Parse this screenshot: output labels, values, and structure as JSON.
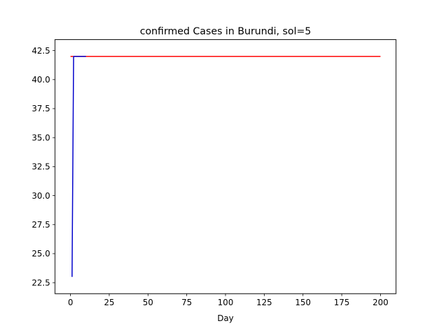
{
  "chart_data": {
    "type": "line",
    "title": "confirmed Cases in Burundi, sol=5",
    "xlabel": "Day",
    "ylabel": "",
    "xlim": [
      -10,
      210
    ],
    "ylim": [
      21.55,
      43.45
    ],
    "xticks": [
      0,
      25,
      50,
      75,
      100,
      125,
      150,
      175,
      200
    ],
    "xtick_labels": [
      "0",
      "25",
      "50",
      "75",
      "100",
      "125",
      "150",
      "175",
      "200"
    ],
    "yticks": [
      22.5,
      25.0,
      27.5,
      30.0,
      32.5,
      35.0,
      37.5,
      40.0,
      42.5
    ],
    "ytick_labels": [
      "22.5",
      "25.0",
      "27.5",
      "30.0",
      "32.5",
      "35.0",
      "37.5",
      "40.0",
      "42.5"
    ],
    "grid": false,
    "legend": "none",
    "series": [
      {
        "color": "#ff0000",
        "x": [
          0,
          200
        ],
        "y": [
          42,
          42
        ]
      },
      {
        "color": "#0000cc",
        "x": [
          1,
          2,
          3,
          4,
          5,
          6,
          7,
          8,
          9,
          10
        ],
        "y": [
          23,
          42,
          42,
          42,
          42,
          42,
          42,
          42,
          42,
          42
        ]
      }
    ]
  }
}
